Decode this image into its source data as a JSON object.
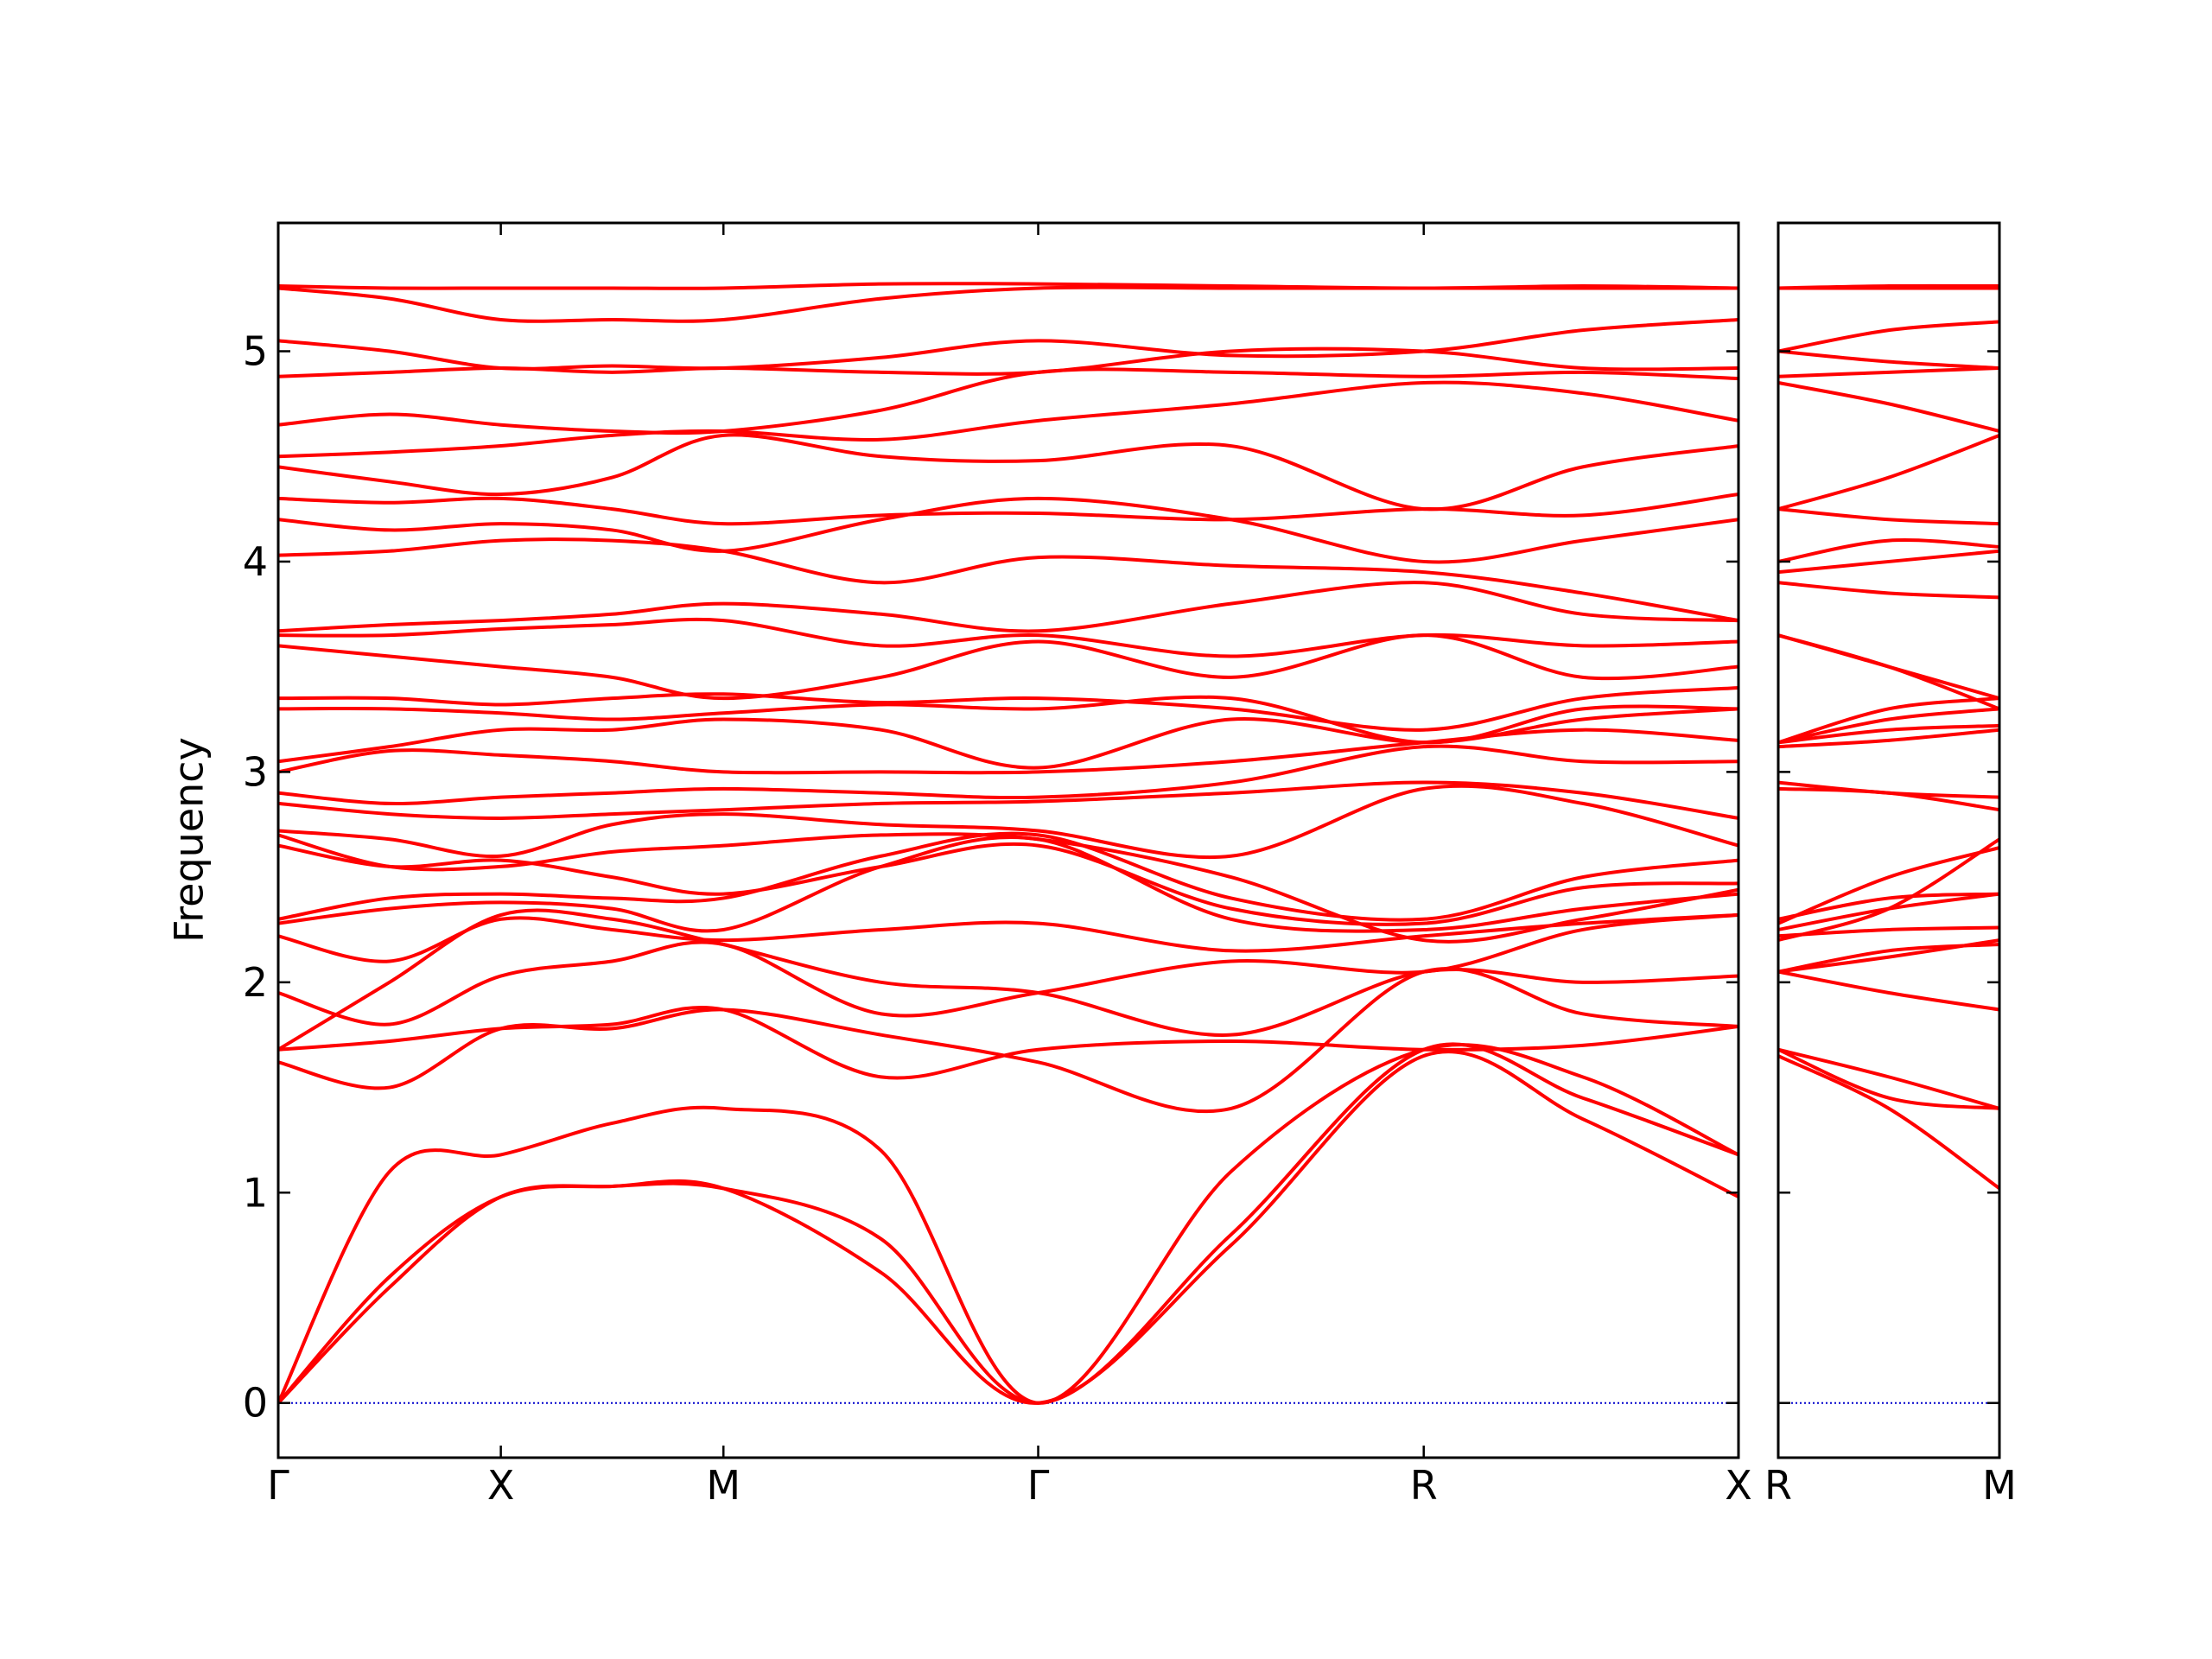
{
  "chart_data": [
    {
      "type": "line",
      "ylabel": "Frequency",
      "color": "#ff0000",
      "x": [
        0,
        0.25,
        0.5,
        0.75,
        1.0,
        1.354,
        1.707,
        2.14,
        2.573,
        2.93,
        3.28
      ],
      "xlim": [
        0,
        3.28
      ],
      "xticks": [
        {
          "value": 0,
          "label": "Γ"
        },
        {
          "value": 0.5,
          "label": "X"
        },
        {
          "value": 1.0,
          "label": "M"
        },
        {
          "value": 1.707,
          "label": "Γ"
        },
        {
          "value": 2.573,
          "label": "R"
        },
        {
          "value": 3.28,
          "label": "X"
        }
      ],
      "ylim": [
        -0.26,
        5.61
      ],
      "yticks": [
        0,
        1,
        2,
        3,
        4,
        5
      ],
      "hlines": [
        {
          "value": 0,
          "color": "#0000cc",
          "style": "dotted"
        }
      ],
      "series": [
        {
          "values": [
            0,
            0.55,
            0.98,
            1.03,
            1.02,
            0.62,
            0,
            0.75,
            1.65,
            1.35,
            0.98
          ]
        },
        {
          "values": [
            0,
            0.6,
            0.98,
            1.03,
            1.02,
            0.78,
            0,
            0.8,
            1.68,
            1.45,
            1.18
          ]
        },
        {
          "values": [
            0,
            1.1,
            1.18,
            1.33,
            1.4,
            1.2,
            0,
            1.1,
            1.68,
            1.55,
            1.18
          ]
        },
        {
          "values": [
            1.62,
            1.5,
            1.78,
            1.78,
            1.87,
            1.75,
            1.62,
            1.4,
            2.05,
            1.85,
            1.79
          ]
        },
        {
          "values": [
            1.68,
            1.72,
            1.78,
            1.8,
            1.87,
            1.55,
            1.68,
            1.72,
            1.68,
            1.7,
            1.79
          ]
        },
        {
          "values": [
            1.68,
            2.0,
            2.32,
            2.3,
            2.18,
            2.0,
            1.95,
            1.75,
            2.05,
            2.0,
            2.03
          ]
        },
        {
          "values": [
            1.95,
            1.8,
            2.03,
            2.1,
            2.18,
            1.85,
            1.95,
            2.1,
            2.05,
            2.25,
            2.32
          ]
        },
        {
          "values": [
            2.22,
            2.1,
            2.3,
            2.25,
            2.2,
            2.25,
            2.28,
            2.15,
            2.22,
            2.28,
            2.32
          ]
        },
        {
          "values": [
            2.28,
            2.35,
            2.38,
            2.35,
            2.25,
            2.55,
            2.68,
            2.3,
            2.25,
            2.35,
            2.42
          ]
        },
        {
          "values": [
            2.3,
            2.4,
            2.42,
            2.4,
            2.4,
            2.6,
            2.7,
            2.4,
            2.3,
            2.5,
            2.58
          ]
        },
        {
          "values": [
            2.65,
            2.55,
            2.58,
            2.5,
            2.42,
            2.55,
            2.65,
            2.35,
            2.28,
            2.45,
            2.47
          ]
        },
        {
          "values": [
            2.7,
            2.55,
            2.55,
            2.62,
            2.65,
            2.7,
            2.68,
            2.5,
            2.2,
            2.3,
            2.44
          ]
        },
        {
          "values": [
            2.72,
            2.68,
            2.6,
            2.75,
            2.8,
            2.75,
            2.72,
            2.6,
            2.92,
            2.85,
            2.65
          ]
        },
        {
          "values": [
            2.85,
            2.8,
            2.78,
            2.8,
            2.82,
            2.85,
            2.86,
            2.9,
            2.95,
            2.9,
            2.78
          ]
        },
        {
          "values": [
            2.9,
            2.85,
            2.88,
            2.9,
            2.92,
            2.9,
            2.88,
            2.95,
            3.12,
            3.05,
            3.05
          ]
        },
        {
          "values": [
            3.0,
            3.1,
            3.08,
            3.05,
            3.0,
            3.0,
            3.0,
            3.05,
            3.14,
            3.2,
            3.15
          ]
        },
        {
          "values": [
            3.05,
            3.12,
            3.2,
            3.2,
            3.25,
            3.2,
            3.02,
            3.25,
            3.14,
            3.25,
            3.3
          ]
        },
        {
          "values": [
            3.3,
            3.3,
            3.28,
            3.25,
            3.28,
            3.32,
            3.3,
            3.35,
            3.14,
            3.3,
            3.3
          ]
        },
        {
          "values": [
            3.35,
            3.35,
            3.32,
            3.35,
            3.37,
            3.33,
            3.35,
            3.3,
            3.2,
            3.35,
            3.4
          ]
        },
        {
          "values": [
            3.6,
            3.55,
            3.5,
            3.45,
            3.35,
            3.45,
            3.62,
            3.45,
            3.65,
            3.45,
            3.5
          ]
        },
        {
          "values": [
            3.65,
            3.65,
            3.68,
            3.7,
            3.72,
            3.6,
            3.65,
            3.55,
            3.65,
            3.6,
            3.62
          ]
        },
        {
          "values": [
            3.67,
            3.7,
            3.72,
            3.75,
            3.8,
            3.75,
            3.67,
            3.8,
            3.9,
            3.75,
            3.72
          ]
        },
        {
          "values": [
            4.03,
            4.05,
            4.1,
            4.1,
            4.05,
            3.9,
            4.02,
            3.98,
            3.95,
            3.85,
            3.72
          ]
        },
        {
          "values": [
            4.2,
            4.15,
            4.18,
            4.15,
            4.05,
            4.2,
            4.3,
            4.2,
            4.0,
            4.1,
            4.2
          ]
        },
        {
          "values": [
            4.3,
            4.28,
            4.3,
            4.25,
            4.18,
            4.22,
            4.23,
            4.2,
            4.25,
            4.22,
            4.32
          ]
        },
        {
          "values": [
            4.45,
            4.38,
            4.32,
            4.4,
            4.6,
            4.5,
            4.48,
            4.55,
            4.25,
            4.45,
            4.55
          ]
        },
        {
          "values": [
            4.5,
            4.52,
            4.55,
            4.6,
            4.62,
            4.58,
            4.67,
            4.75,
            4.85,
            4.8,
            4.67
          ]
        },
        {
          "values": [
            4.65,
            4.7,
            4.65,
            4.62,
            4.62,
            4.72,
            4.9,
            4.9,
            4.88,
            4.9,
            4.87
          ]
        },
        {
          "values": [
            4.88,
            4.9,
            4.92,
            4.9,
            4.92,
            4.9,
            4.9,
            5.0,
            5.0,
            4.92,
            4.92
          ]
        },
        {
          "values": [
            5.05,
            5.0,
            4.92,
            4.93,
            4.92,
            4.97,
            5.05,
            4.98,
            5.0,
            5.1,
            5.15
          ]
        },
        {
          "values": [
            5.3,
            5.25,
            5.15,
            5.15,
            5.15,
            5.25,
            5.3,
            5.3,
            5.3,
            5.3,
            5.3
          ]
        },
        {
          "values": [
            5.31,
            5.3,
            5.3,
            5.3,
            5.3,
            5.32,
            5.32,
            5.31,
            5.3,
            5.31,
            5.3
          ]
        }
      ]
    },
    {
      "type": "line",
      "color": "#ff0000",
      "x": [
        0,
        0.25,
        0.5
      ],
      "xlim": [
        0,
        0.5
      ],
      "xticks": [
        {
          "value": 0,
          "label": "R"
        },
        {
          "value": 0.5,
          "label": "M"
        }
      ],
      "hlines": [
        {
          "value": 0,
          "color": "#0000cc",
          "style": "dotted"
        }
      ],
      "series": [
        {
          "values": [
            1.65,
            1.4,
            1.02
          ]
        },
        {
          "values": [
            1.68,
            1.55,
            1.4
          ]
        },
        {
          "values": [
            1.68,
            1.45,
            1.4
          ]
        },
        {
          "values": [
            2.05,
            1.95,
            1.87
          ]
        },
        {
          "values": [
            2.05,
            2.15,
            2.18
          ]
        },
        {
          "values": [
            2.05,
            2.12,
            2.2
          ]
        },
        {
          "values": [
            2.22,
            2.25,
            2.26
          ]
        },
        {
          "values": [
            2.25,
            2.35,
            2.42
          ]
        },
        {
          "values": [
            2.3,
            2.4,
            2.42
          ]
        },
        {
          "values": [
            2.28,
            2.5,
            2.64
          ]
        },
        {
          "values": [
            2.2,
            2.35,
            2.68
          ]
        },
        {
          "values": [
            2.92,
            2.9,
            2.82
          ]
        },
        {
          "values": [
            2.95,
            2.9,
            2.88
          ]
        },
        {
          "values": [
            3.12,
            3.15,
            3.2
          ]
        },
        {
          "values": [
            3.14,
            3.2,
            3.22
          ]
        },
        {
          "values": [
            3.14,
            3.25,
            3.3
          ]
        },
        {
          "values": [
            3.14,
            3.3,
            3.35
          ]
        },
        {
          "values": [
            3.65,
            3.5,
            3.35
          ]
        },
        {
          "values": [
            3.65,
            3.5,
            3.3
          ]
        },
        {
          "values": [
            3.9,
            3.85,
            3.83
          ]
        },
        {
          "values": [
            3.95,
            4.0,
            4.05
          ]
        },
        {
          "values": [
            4.0,
            4.1,
            4.07
          ]
        },
        {
          "values": [
            4.25,
            4.2,
            4.18
          ]
        },
        {
          "values": [
            4.25,
            4.4,
            4.6
          ]
        },
        {
          "values": [
            4.85,
            4.75,
            4.62
          ]
        },
        {
          "values": [
            4.88,
            4.9,
            4.92
          ]
        },
        {
          "values": [
            5.0,
            4.95,
            4.92
          ]
        },
        {
          "values": [
            5.0,
            5.1,
            5.14
          ]
        },
        {
          "values": [
            5.3,
            5.3,
            5.3
          ]
        },
        {
          "values": [
            5.3,
            5.31,
            5.31
          ]
        }
      ]
    }
  ]
}
